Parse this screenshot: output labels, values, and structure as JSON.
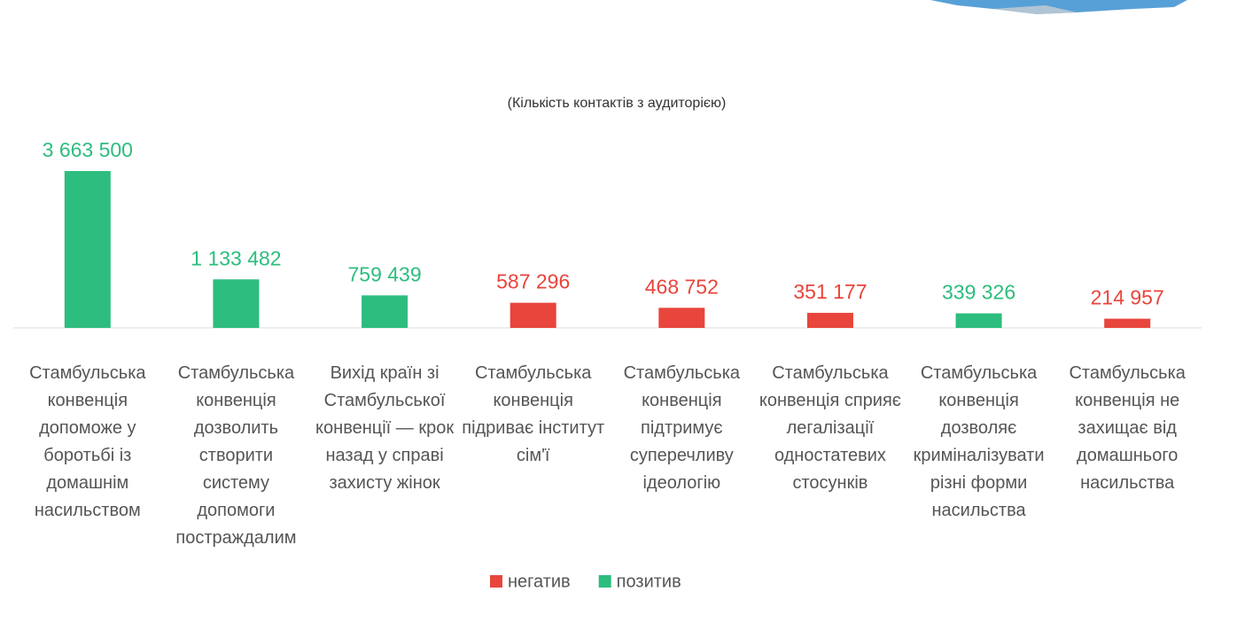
{
  "chart_data": {
    "type": "bar",
    "subtitle": "(Кількість контактів з аудиторією)",
    "categories": [
      "Стамбульська конвенція допоможе у боротьбі із домашнім насильством",
      "Стамбульська конвенція дозволить створити систему допомоги постраждалим",
      "Вихід країн зі Стамбульської конвенції — крок назад у справі захисту жінок",
      "Стамбульська конвенція підриває інститут сім'ї",
      "Стамбульська конвенція підтримує суперечливу ідеологію",
      "Стамбульська конвенція сприяє легалізації одностатевих стосунків",
      "Стамбульська конвенція дозволяє криміналізувати різні форми насильства",
      "Стамбульська конвенція не захищає від домашнього насильства"
    ],
    "series": [
      {
        "name": "негатив",
        "color": "#e8453c",
        "values": [
          null,
          null,
          null,
          587296,
          468752,
          351177,
          null,
          214957
        ],
        "value_labels": [
          null,
          null,
          null,
          "587 296",
          "468 752",
          "351 177",
          null,
          "214 957"
        ]
      },
      {
        "name": "позитив",
        "color": "#2dbd7e",
        "values": [
          3663500,
          1133482,
          759439,
          null,
          null,
          null,
          339326,
          null
        ],
        "value_labels": [
          "3 663 500",
          "1 133 482",
          "759 439",
          null,
          null,
          null,
          "339 326",
          null
        ]
      }
    ]
  }
}
